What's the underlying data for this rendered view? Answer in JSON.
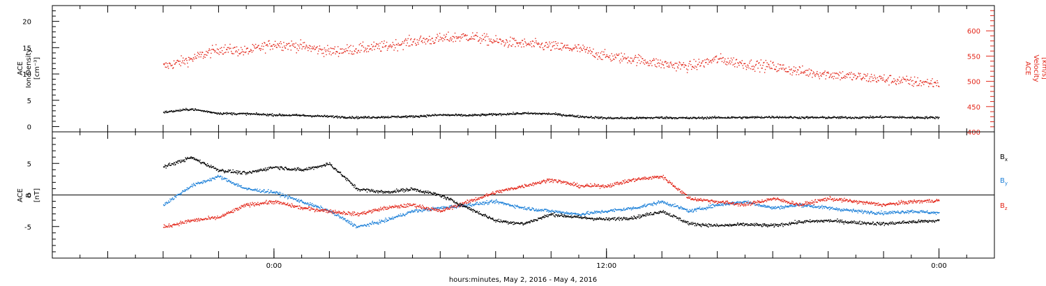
{
  "chart_data": [
    {
      "type": "scatter",
      "panel": "top",
      "left_axis_label": [
        "ACE",
        "Ion Density",
        "[cm⁻³]"
      ],
      "right_axis_label": [
        "ACE",
        "Velocity",
        "[km/s]"
      ],
      "left_ylim": [
        -1,
        23
      ],
      "right_ylim": [
        400,
        650
      ],
      "left_ticks": [
        0,
        5,
        10,
        15,
        20
      ],
      "right_ticks": [
        400,
        450,
        500,
        550,
        600
      ],
      "left_tick_labels": [
        "0",
        "5",
        "10",
        "15",
        "20"
      ],
      "right_tick_labels": [
        "400",
        "450",
        "500",
        "550",
        "600"
      ],
      "series": [
        {
          "name": "",
          "axis": "left",
          "color": "#000000",
          "x_hours": [
            -4,
            -3,
            -2,
            -1,
            0,
            1,
            2,
            3,
            4,
            5,
            6,
            7,
            8,
            9,
            10,
            11,
            12,
            13,
            14,
            15,
            16,
            17,
            18,
            19,
            20,
            21,
            22,
            23,
            24
          ],
          "y": [
            2.8,
            3.4,
            2.6,
            2.5,
            2.3,
            2.2,
            2.0,
            1.8,
            1.9,
            2.0,
            2.3,
            2.2,
            2.4,
            2.6,
            2.5,
            2.0,
            1.7,
            1.7,
            1.8,
            1.7,
            1.8,
            1.8,
            1.9,
            1.8,
            1.8,
            1.8,
            1.9,
            1.8,
            1.8
          ]
        },
        {
          "name": "",
          "axis": "right",
          "color": "#e32619",
          "x_hours": [
            -4,
            -3,
            -2,
            -1,
            0,
            1,
            2,
            3,
            4,
            5,
            6,
            7,
            8,
            9,
            10,
            11,
            12,
            13,
            14,
            15,
            16,
            17,
            18,
            19,
            20,
            21,
            22,
            23,
            24
          ],
          "y": [
            530,
            545,
            565,
            560,
            575,
            570,
            560,
            565,
            570,
            580,
            585,
            590,
            580,
            575,
            570,
            565,
            550,
            545,
            535,
            530,
            545,
            535,
            530,
            520,
            515,
            510,
            505,
            500,
            497
          ]
        }
      ]
    },
    {
      "type": "scatter",
      "panel": "bottom",
      "left_axis_label": [
        "ACE",
        "B",
        "[nT]"
      ],
      "ylim": [
        -10,
        10
      ],
      "ticks": [
        -5,
        0,
        5
      ],
      "tick_labels": [
        "-5",
        "0",
        "5"
      ],
      "zero_line": true,
      "legend_placement": "right",
      "series": [
        {
          "name": "Bx",
          "color": "#000000",
          "x_hours": [
            -4,
            -3,
            -2,
            -1,
            0,
            1,
            2,
            3,
            4,
            5,
            6,
            7,
            8,
            9,
            10,
            11,
            12,
            13,
            14,
            15,
            16,
            17,
            18,
            19,
            20,
            21,
            22,
            23,
            24
          ],
          "y": [
            4.5,
            6.0,
            4.0,
            3.5,
            4.5,
            4.0,
            5.0,
            1.0,
            0.5,
            1.0,
            0.0,
            -2.0,
            -4.0,
            -4.5,
            -3.0,
            -3.5,
            -3.8,
            -3.5,
            -2.5,
            -4.5,
            -4.8,
            -4.6,
            -4.8,
            -4.2,
            -4.0,
            -4.3,
            -4.5,
            -4.2,
            -4.0
          ]
        },
        {
          "name": "By",
          "color": "#1b7fd8",
          "x_hours": [
            -4,
            -3,
            -2,
            -1,
            0,
            1,
            2,
            3,
            4,
            5,
            6,
            7,
            8,
            9,
            10,
            11,
            12,
            13,
            14,
            15,
            16,
            17,
            18,
            19,
            20,
            21,
            22,
            23,
            24
          ],
          "y": [
            -1.5,
            1.5,
            3.0,
            1.0,
            0.5,
            -1.0,
            -2.5,
            -5.0,
            -4.0,
            -2.5,
            -2.0,
            -1.5,
            -1.0,
            -2.0,
            -2.5,
            -3.0,
            -2.5,
            -2.0,
            -1.0,
            -2.5,
            -1.5,
            -1.0,
            -2.0,
            -1.5,
            -2.0,
            -2.5,
            -2.8,
            -2.5,
            -2.8
          ]
        },
        {
          "name": "Bz",
          "color": "#e32619",
          "x_hours": [
            -4,
            -3,
            -2,
            -1,
            0,
            1,
            2,
            3,
            4,
            5,
            6,
            7,
            8,
            9,
            10,
            11,
            12,
            13,
            14,
            15,
            16,
            17,
            18,
            19,
            20,
            21,
            22,
            23,
            24
          ],
          "y": [
            -5.0,
            -4.0,
            -3.5,
            -1.5,
            -1.0,
            -2.0,
            -2.5,
            -3.0,
            -2.0,
            -1.5,
            -2.5,
            -1.0,
            0.5,
            1.5,
            2.5,
            1.5,
            1.5,
            2.5,
            3.0,
            -0.5,
            -1.0,
            -1.5,
            -0.5,
            -1.5,
            -0.5,
            -1.0,
            -1.5,
            -1.0,
            -0.8
          ]
        }
      ]
    }
  ],
  "x_axis": {
    "label": "hours:minutes, May  2, 2016 - May  4, 2016",
    "range_hours": [
      -8,
      26
    ],
    "labeled_ticks": [
      {
        "hours": 0,
        "label": "0:00"
      },
      {
        "hours": 12,
        "label": "12:00"
      },
      {
        "hours": 24,
        "label": "0:00"
      }
    ],
    "major_tick_every_hours": 2,
    "minor_tick_every_hours": 1
  },
  "legend": {
    "bx_main": "B",
    "bx_sub": "x",
    "by_main": "B",
    "by_sub": "y",
    "bz_main": "B",
    "bz_sub": "z"
  }
}
